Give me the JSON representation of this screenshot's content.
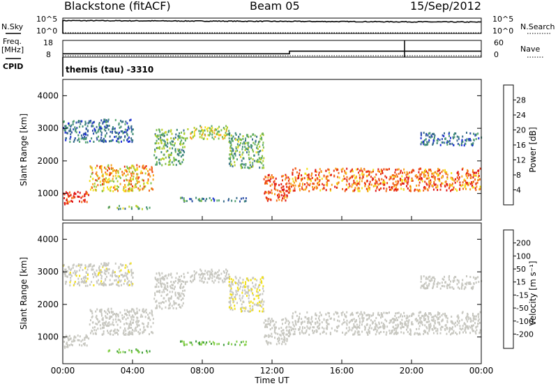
{
  "header": {
    "title": "Blackstone (fitACF)",
    "beam": "Beam 05",
    "date": "15/Sep/2012"
  },
  "strips": {
    "nsky_label": "N.Sky",
    "nsearch_label": "N.Search",
    "noise_ticks": [
      "10^5",
      "10^0"
    ],
    "freq_label": "Freq.",
    "freq_unit": "[MHz]",
    "freq_ticks": [
      "18",
      "8"
    ],
    "nave_label": "Nave",
    "nave_ticks": [
      "60",
      "0"
    ],
    "cpid_label": "CPID",
    "cpid_text": "themis (tau) -3310"
  },
  "colorbars": {
    "power": {
      "label": "Power [dB]",
      "ticks": [
        "28",
        "24",
        "20",
        "16",
        "12",
        "8",
        "4"
      ],
      "colors": [
        "#1a2bd6",
        "#2c4fa8",
        "#3a6e8c",
        "#3e8a78",
        "#55a56e",
        "#7fbf4a",
        "#b7cf2a",
        "#f3e01b",
        "#f7a21a",
        "#f46a18",
        "#ea3a16",
        "#e01414"
      ]
    },
    "velocity": {
      "label": "Velocity [m s⁻¹]",
      "ticks": [
        "200",
        "100",
        "50",
        "15",
        "-15",
        "-50",
        "-100",
        "-200"
      ],
      "colors": [
        "#1f2fb4",
        "#2a5a8a",
        "#2f7a6a",
        "#3e9c3c",
        "#86d04a",
        "#c7c7c0",
        "#c7c7c0",
        "#f2e018",
        "#f7a21a",
        "#f06a18",
        "#e83a16",
        "#e01414"
      ]
    }
  },
  "axes": {
    "ylabel": "Slant Range [km]",
    "yticks": [
      "4000",
      "3000",
      "2000",
      "1000"
    ],
    "xlabel": "Time UT",
    "xticks": [
      "00:00",
      "04:00",
      "08:00",
      "12:00",
      "16:00",
      "20:00",
      "00:00"
    ]
  },
  "chart_data": {
    "type": "heatmap",
    "x_range_hours": [
      0,
      24
    ],
    "y_range_km": [
      180,
      4500
    ],
    "power_range_db": [
      0,
      30
    ],
    "velocity_range_ms": [
      -250,
      250
    ],
    "noise_panel": {
      "ylim": [
        0,
        5
      ],
      "scale": "log10"
    },
    "frequency_panel": {
      "ylim_mhz": [
        8,
        18
      ],
      "steps": [
        {
          "x_range_hours": [
            0,
            13.0
          ],
          "freq_mhz": 10.0
        },
        {
          "x_range_hours": [
            13.0,
            24
          ],
          "freq_mhz": 11.6
        }
      ]
    },
    "nave_panel": {
      "ylim": [
        0,
        60
      ],
      "approx_value": 0
    },
    "scatter_bands": [
      {
        "x_range_hours": [
          0.0,
          1.5
        ],
        "range_km": [
          700,
          1100
        ],
        "power_db": 28,
        "velocity_ms": -10
      },
      {
        "x_range_hours": [
          1.5,
          5.2
        ],
        "range_km": [
          1100,
          1900
        ],
        "power_db": 20,
        "velocity_ms": 10
      },
      {
        "x_range_hours": [
          5.2,
          7.0
        ],
        "range_km": [
          1900,
          3000
        ],
        "power_db": 12,
        "velocity_ms": 5
      },
      {
        "x_range_hours": [
          7.0,
          9.5
        ],
        "range_km": [
          2700,
          3100
        ],
        "power_db": 16,
        "velocity_ms": -5
      },
      {
        "x_range_hours": [
          9.5,
          11.5
        ],
        "range_km": [
          1800,
          2900
        ],
        "power_db": 12,
        "velocity_ms": 30
      },
      {
        "x_range_hours": [
          11.5,
          13.0
        ],
        "range_km": [
          800,
          1600
        ],
        "power_db": 26,
        "velocity_ms": -10
      },
      {
        "x_range_hours": [
          13.0,
          24.0
        ],
        "range_km": [
          1100,
          1800
        ],
        "power_db": 24,
        "velocity_ms": 0
      },
      {
        "x_range_hours": [
          2.5,
          5.0
        ],
        "range_km": [
          550,
          650
        ],
        "power_db": 12,
        "velocity_ms": -80
      },
      {
        "x_range_hours": [
          6.5,
          10.5
        ],
        "range_km": [
          780,
          900
        ],
        "power_db": 8,
        "velocity_ms": -70
      },
      {
        "x_range_hours": [
          0.0,
          4.0
        ],
        "range_km": [
          2600,
          3300
        ],
        "power_db": 6,
        "velocity_ms": 20
      },
      {
        "x_range_hours": [
          20.5,
          24.0
        ],
        "range_km": [
          2500,
          2900
        ],
        "power_db": 6,
        "velocity_ms": 0
      }
    ]
  }
}
